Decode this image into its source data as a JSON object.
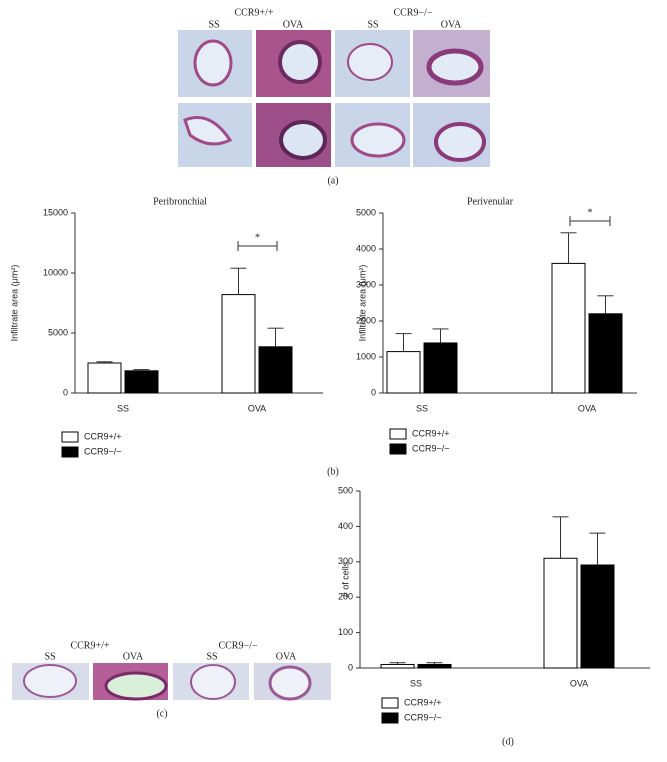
{
  "figure": {
    "a": {
      "genotypes": [
        "CCR9+/+",
        "CCR9−/−"
      ],
      "conditions": [
        "SS",
        "OVA",
        "SS",
        "OVA"
      ],
      "label": "(a)"
    },
    "b_label": "(b)",
    "c": {
      "genotypes": [
        "CCR9+/+",
        "CCR9−/−"
      ],
      "conditions": [
        "SS",
        "OVA",
        "SS",
        "OVA"
      ],
      "label": "(c)"
    },
    "d_label": "(d)"
  },
  "chart_data": [
    {
      "type": "bar",
      "title": "Peribronchial",
      "y_label": "Infiltrate area (μm²)",
      "categories": [
        "SS",
        "OVA"
      ],
      "series": [
        {
          "name": "CCR9+/+",
          "color": "#ffffff",
          "values": [
            2500,
            8200
          ],
          "errors": [
            100,
            2200
          ]
        },
        {
          "name": "CCR9−/−",
          "color": "#000000",
          "values": [
            1850,
            3850
          ],
          "errors": [
            100,
            1550
          ]
        }
      ],
      "ylim": [
        0,
        15000
      ],
      "yticks": [
        0,
        5000,
        10000,
        15000
      ],
      "annotation": "*"
    },
    {
      "type": "bar",
      "title": "Perivenular",
      "y_label": "Infiltrate area (μm²)",
      "categories": [
        "SS",
        "OVA"
      ],
      "series": [
        {
          "name": "CCR9+/+",
          "color": "#ffffff",
          "values": [
            1150,
            3600
          ],
          "errors": [
            500,
            850
          ]
        },
        {
          "name": "CCR9−/−",
          "color": "#000000",
          "values": [
            1390,
            2200
          ],
          "errors": [
            390,
            500
          ]
        }
      ],
      "ylim": [
        0,
        5000
      ],
      "yticks": [
        0,
        1000,
        2000,
        3000,
        4000,
        5000
      ],
      "annotation": "*"
    },
    {
      "type": "bar",
      "y_label": "# of cells",
      "categories": [
        "SS",
        "OVA"
      ],
      "series": [
        {
          "name": "CCR9+/+",
          "color": "#ffffff",
          "values": [
            10,
            310
          ],
          "errors": [
            5,
            117
          ]
        },
        {
          "name": "CCR9−/−",
          "color": "#000000",
          "values": [
            10,
            291
          ],
          "errors": [
            5,
            90
          ]
        }
      ],
      "ylim": [
        0,
        500
      ],
      "yticks": [
        0,
        100,
        200,
        300,
        400,
        500
      ]
    }
  ]
}
